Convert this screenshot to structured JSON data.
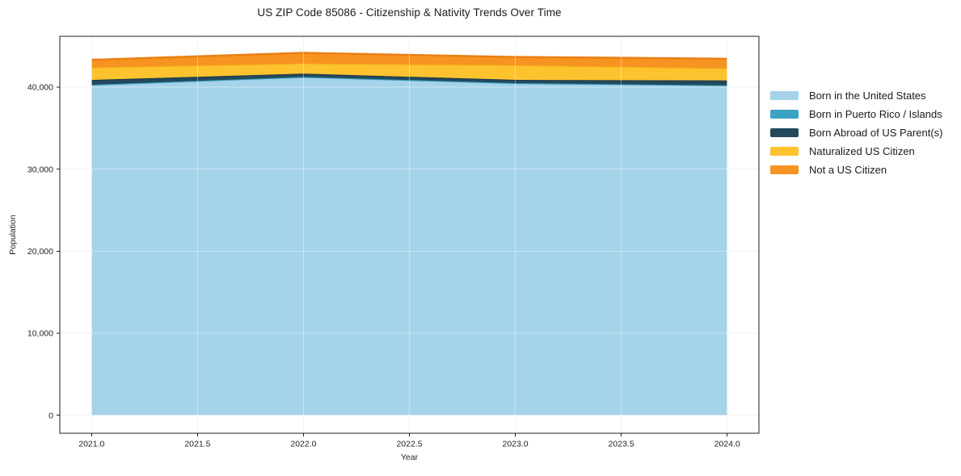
{
  "chart_data": {
    "type": "area",
    "stacked": true,
    "title": "US ZIP Code 85086 - Citizenship & Nativity Trends Over Time",
    "xlabel": "Year",
    "ylabel": "Population",
    "x": [
      2021,
      2022,
      2023,
      2024
    ],
    "series": [
      {
        "name": "Born in the United States",
        "color": "#a5d3e9",
        "edge_color": "#8cc3dc",
        "values": [
          40250,
          41200,
          40450,
          40180
        ]
      },
      {
        "name": "Born in Puerto Rico / Islands",
        "color": "#3ba3c2",
        "edge_color": "#3195b5",
        "values": [
          50,
          50,
          50,
          50
        ]
      },
      {
        "name": "Born Abroad of US Parent(s)",
        "color": "#24485c",
        "edge_color": "#1b3a4b",
        "values": [
          580,
          400,
          390,
          590
        ]
      },
      {
        "name": "Naturalized US Citizen",
        "color": "#fdc32f",
        "edge_color": "#f3ab16",
        "values": [
          1530,
          1250,
          1800,
          1480
        ]
      },
      {
        "name": "Not a US Citizen",
        "color": "#f79421",
        "edge_color": "#ea7f14",
        "values": [
          920,
          1280,
          990,
          1160
        ]
      }
    ],
    "xtick_values": [
      2021.0,
      2021.5,
      2022.0,
      2022.5,
      2023.0,
      2023.5,
      2024.0
    ],
    "xtick_labels": [
      "2021.0",
      "2021.5",
      "2022.0",
      "2022.5",
      "2023.0",
      "2023.5",
      "2024.0"
    ],
    "ytick_values": [
      0,
      10000,
      20000,
      30000,
      40000
    ],
    "ytick_labels": [
      "0",
      "10,000",
      "20,000",
      "30,000",
      "40,000"
    ],
    "xlim": [
      2020.85,
      2024.15
    ],
    "ylim": [
      -2200,
      46200
    ],
    "grid": true,
    "legend_position": "right"
  },
  "colors": {
    "background": "#ffffff",
    "axis": "#1f1f1f",
    "grid": "#e9e9e9",
    "grid_overlay": "rgba(255,255,255,0.40)",
    "tick_text": "#1f1f1f"
  }
}
